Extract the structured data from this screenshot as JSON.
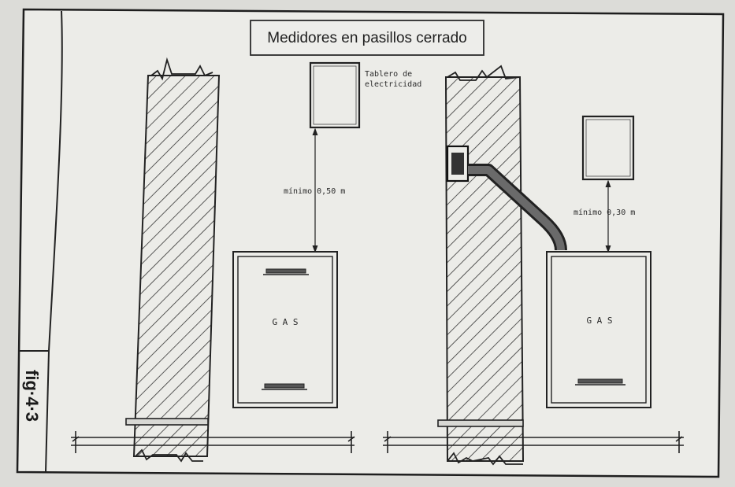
{
  "title": "Medidores en pasillos cerrado",
  "figure_label": "fig·4·3",
  "left_diagram": {
    "panel_label_line1": "Tablero de",
    "panel_label_line2": "electricidad",
    "distance_label": "mínimo 0,50 m",
    "meter_label": "G A S"
  },
  "right_diagram": {
    "distance_label": "mínimo 0,30 m",
    "meter_label": "G A S"
  },
  "colors": {
    "paper": "#ecece8",
    "ink": "#2b2b2b",
    "background": "#dcdcd8"
  }
}
